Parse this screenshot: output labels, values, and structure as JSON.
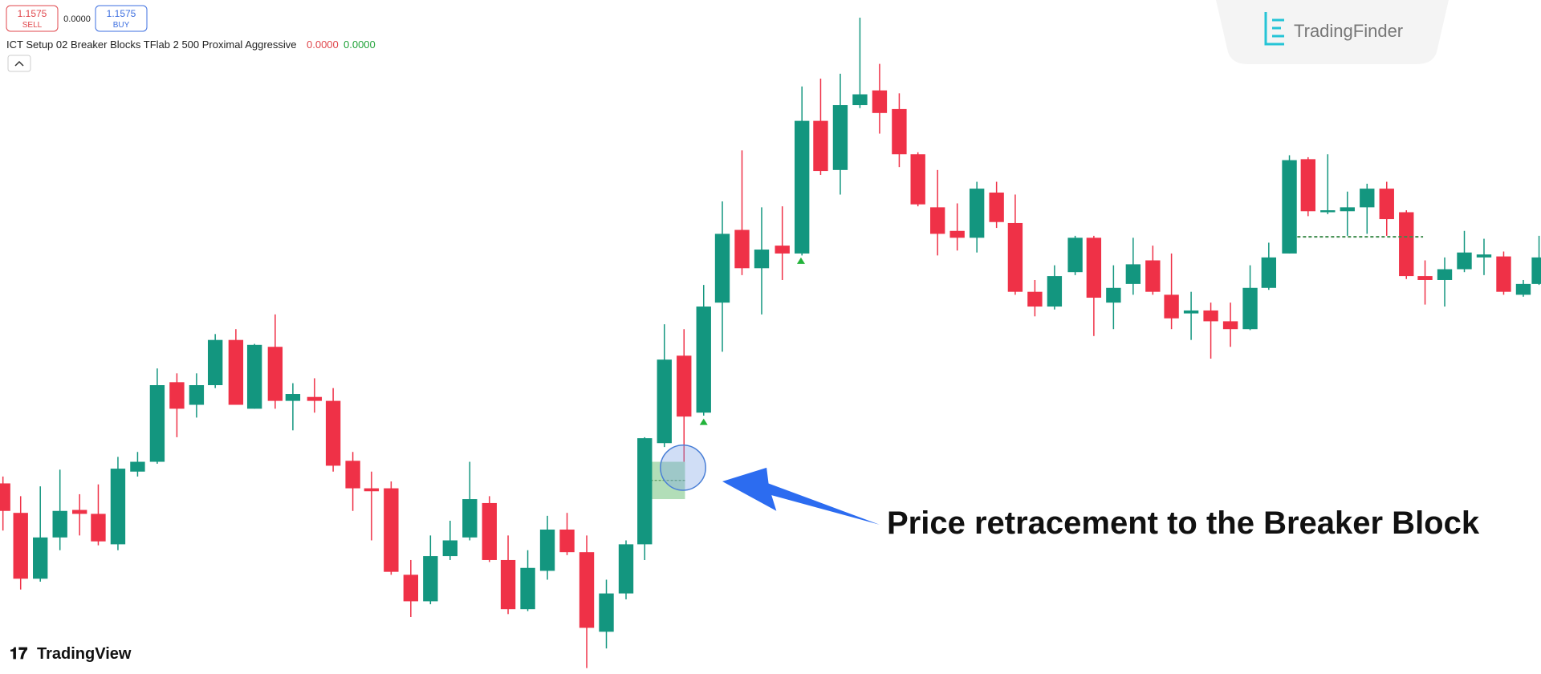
{
  "toolbar": {
    "sell_price": "1.1575",
    "sell_label": "SELL",
    "spread": "0.0000",
    "buy_price": "1.1575",
    "buy_label": "BUY"
  },
  "indicator": {
    "name": "ICT Setup 02 Breaker Blocks TFlab 2 500 Proximal Aggressive",
    "value_1": "0.0000",
    "value_2": "0.0000"
  },
  "brand": {
    "top": "TradingFinder",
    "bottom": "TradingView"
  },
  "annotation": "Price retracement to the Breaker Block"
}
